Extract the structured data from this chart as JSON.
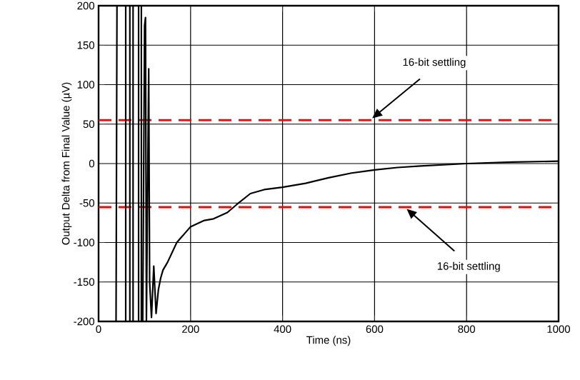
{
  "chart_data": {
    "type": "line",
    "xlabel": "Time (ns)",
    "ylabel": "Output Delta from Final Value (µV)",
    "xlim": [
      0,
      1000
    ],
    "xticks": [
      0,
      200,
      400,
      600,
      800,
      1000
    ],
    "ylim": [
      -200,
      200
    ],
    "yticks": [
      -200,
      -150,
      -100,
      -50,
      0,
      50,
      100,
      150,
      200
    ],
    "grid": true,
    "marker": "none",
    "line_style": "solid",
    "series": [
      {
        "color": "#000000",
        "x": [
          38,
          40,
          59,
          59,
          68,
          68,
          75,
          75,
          87,
          87,
          93,
          93,
          96,
          100,
          102,
          104,
          109,
          111,
          115,
          120,
          125,
          130,
          135,
          140,
          150,
          170,
          200,
          230,
          250,
          280,
          300,
          330,
          360,
          400,
          450,
          500,
          550,
          600,
          650,
          700,
          800,
          900,
          1000
        ],
        "values": [
          -200,
          200,
          200,
          -200,
          -200,
          200,
          200,
          -200,
          -200,
          200,
          200,
          -200,
          -200,
          175,
          185,
          -200,
          120,
          -150,
          -195,
          -130,
          -190,
          -160,
          -145,
          -135,
          -125,
          -100,
          -80,
          -72,
          -70,
          -62,
          -52,
          -38,
          -33,
          -30,
          -25,
          -18,
          -12,
          -8,
          -5,
          -3,
          0,
          2,
          3
        ]
      }
    ],
    "ref_lines": [
      {
        "axis": "y",
        "value": 55,
        "color": "#ff0000",
        "line_style": "dashed"
      },
      {
        "axis": "y",
        "value": -55,
        "color": "#ff0000",
        "line_style": "dashed"
      }
    ],
    "annotations": [
      {
        "text": "16-bit settling",
        "x": 590,
        "y": 55
      },
      {
        "text": "16-bit settling",
        "x": 665,
        "y": -55
      }
    ]
  }
}
